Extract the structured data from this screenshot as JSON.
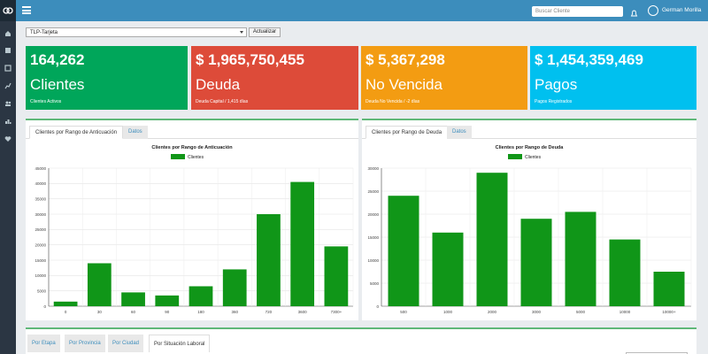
{
  "header": {
    "search_placeholder": "Buscar Cliente",
    "user_name": "German Morilla"
  },
  "controls": {
    "select_value": "TLP-Tarjeta",
    "update_label": "Actualizar"
  },
  "stats": [
    {
      "value": "164,262",
      "label": "Clientes",
      "sub": "Clientes Activos",
      "color": "#00a65a"
    },
    {
      "value": "$ 1,965,750,455",
      "label": "Deuda",
      "sub": "Deuda Capital / 1,415 días",
      "color": "#dd4b39"
    },
    {
      "value": "$ 5,367,298",
      "label": "No Vencida",
      "sub": "Deuda No Vencida / -2 días",
      "color": "#f39c12"
    },
    {
      "value": "$ 1,454,359,469",
      "label": "Pagos",
      "sub": "Pagos Registrados",
      "color": "#00c0ef"
    }
  ],
  "panel_left": {
    "tab_active": "Clientes por Rango de Anticuación",
    "tab_inactive": "Datos"
  },
  "panel_right": {
    "tab_active": "Clientes por Rango de Deuda",
    "tab_inactive": "Datos"
  },
  "bottom_tabs": [
    "Por Etapa",
    "Por Provincia",
    "Por Ciudad",
    "Por Situación Laboral"
  ],
  "chart_data": [
    {
      "type": "bar",
      "title": "Clientes por Rango de Anticuación",
      "categories": [
        "0",
        "30",
        "60",
        "90",
        "180",
        "360",
        "720",
        "3600",
        "7300+"
      ],
      "series": [
        {
          "name": "Clientes",
          "values": [
            1500,
            14000,
            4500,
            3500,
            6500,
            12000,
            30000,
            40500,
            19500
          ],
          "color": "#109618"
        }
      ],
      "yticks": [
        "0",
        "5000",
        "10000",
        "15000",
        "20000",
        "25000",
        "30000",
        "35000",
        "40000",
        "45000"
      ],
      "ylim": [
        0,
        45000
      ],
      "legend": "top",
      "grid": true
    },
    {
      "type": "bar",
      "title": "Clientes por Rango de Deuda",
      "categories": [
        "500",
        "1000",
        "2000",
        "3000",
        "5000",
        "10000",
        "10000+"
      ],
      "series": [
        {
          "name": "Clientes",
          "values": [
            24000,
            16000,
            29000,
            19000,
            20500,
            14500,
            7500
          ],
          "color": "#109618"
        }
      ],
      "yticks": [
        "0",
        "5000",
        "10000",
        "15000",
        "20000",
        "25000",
        "30000"
      ],
      "ylim": [
        0,
        30000
      ],
      "legend": "top",
      "grid": true
    }
  ]
}
